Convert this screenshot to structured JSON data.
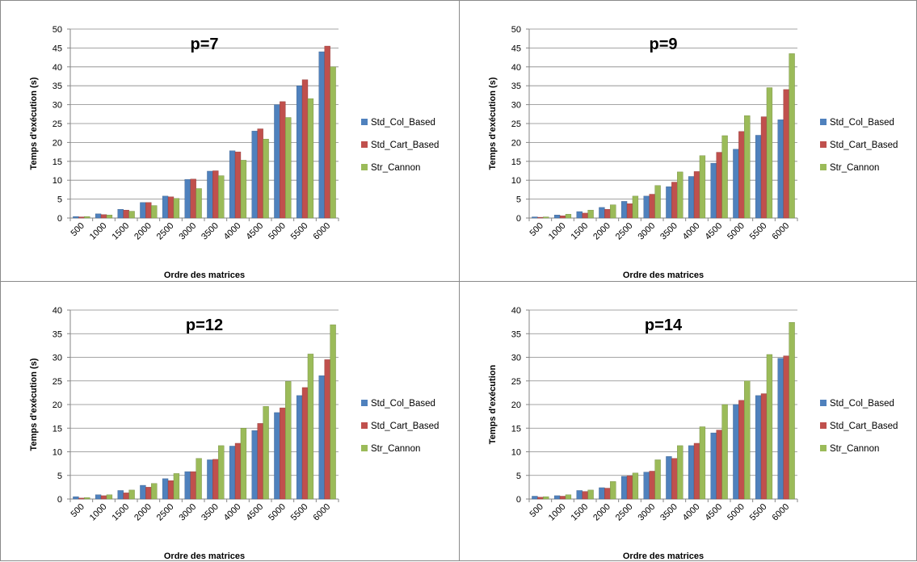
{
  "chart_data": [
    {
      "type": "bar",
      "title": "p=7",
      "xlabel": "Ordre des matrices",
      "ylabel": "Temps d'exécution (s)",
      "ylim": [
        0,
        50
      ],
      "ytick_step": 5,
      "grid": true,
      "legend_position": "right",
      "categories": [
        "500",
        "1000",
        "1500",
        "2000",
        "2500",
        "3000",
        "3500",
        "4000",
        "4500",
        "5000",
        "5500",
        "6000"
      ],
      "series": [
        {
          "name": "Std_Col_Based",
          "values": [
            0.4,
            1.1,
            2.3,
            4.1,
            5.8,
            10.2,
            12.4,
            17.8,
            23.0,
            30.0,
            35.0,
            44.0
          ]
        },
        {
          "name": "Std_Cart_Based",
          "values": [
            0.3,
            0.9,
            2.1,
            4.1,
            5.6,
            10.3,
            12.5,
            17.5,
            23.6,
            30.8,
            36.6,
            45.5
          ]
        },
        {
          "name": "Str_Cannon",
          "values": [
            0.4,
            0.8,
            1.8,
            3.3,
            5.2,
            7.8,
            11.2,
            15.3,
            20.9,
            26.6,
            31.6,
            40.0
          ]
        }
      ]
    },
    {
      "type": "bar",
      "title": "p=9",
      "xlabel": "Ordre des matrices",
      "ylabel": "Temps d'exécution (s)",
      "ylim": [
        0,
        50
      ],
      "ytick_step": 5,
      "grid": true,
      "legend_position": "right",
      "categories": [
        "500",
        "1000",
        "1500",
        "2000",
        "2500",
        "3000",
        "3500",
        "4000",
        "4500",
        "5000",
        "5500",
        "6000"
      ],
      "series": [
        {
          "name": "Std_Col_Based",
          "values": [
            0.3,
            0.8,
            1.7,
            2.8,
            4.4,
            5.8,
            8.3,
            11.0,
            14.5,
            18.2,
            21.9,
            26.0
          ]
        },
        {
          "name": "Std_Cart_Based",
          "values": [
            0.2,
            0.6,
            1.3,
            2.3,
            3.8,
            6.3,
            9.5,
            12.3,
            17.4,
            22.9,
            26.8,
            34.0
          ]
        },
        {
          "name": "Str_Cannon",
          "values": [
            0.3,
            1.0,
            2.1,
            3.5,
            5.8,
            8.6,
            12.2,
            16.5,
            21.8,
            27.1,
            34.5,
            43.5
          ]
        }
      ]
    },
    {
      "type": "bar",
      "title": "p=12",
      "xlabel": "Ordre des matrices",
      "ylabel": "Temps d'exécution (s)",
      "ylim": [
        0,
        40
      ],
      "ytick_step": 5,
      "grid": true,
      "legend_position": "right",
      "categories": [
        "500",
        "1000",
        "1500",
        "2000",
        "2500",
        "3000",
        "3500",
        "4000",
        "4500",
        "5000",
        "5500",
        "6000"
      ],
      "series": [
        {
          "name": "Std_Col_Based",
          "values": [
            0.5,
            0.9,
            1.8,
            2.9,
            4.3,
            5.8,
            8.3,
            11.2,
            14.5,
            18.3,
            21.9,
            26.1
          ]
        },
        {
          "name": "Std_Cart_Based",
          "values": [
            0.2,
            0.7,
            1.3,
            2.5,
            3.9,
            5.8,
            8.4,
            11.8,
            16.0,
            19.3,
            23.6,
            29.5
          ]
        },
        {
          "name": "Str_Cannon",
          "values": [
            0.3,
            0.9,
            1.9,
            3.3,
            5.4,
            8.6,
            11.3,
            15.0,
            19.6,
            24.9,
            30.7,
            36.9
          ]
        }
      ]
    },
    {
      "type": "bar",
      "title": "p=14",
      "xlabel": "Ordre des matrices",
      "ylabel": "Temps d'exécution",
      "ylim": [
        0,
        40
      ],
      "ytick_step": 5,
      "grid": true,
      "legend_position": "right",
      "categories": [
        "500",
        "1000",
        "1500",
        "2000",
        "2500",
        "3000",
        "3500",
        "4000",
        "4500",
        "5000",
        "5500",
        "6000"
      ],
      "series": [
        {
          "name": "Std_Col_Based",
          "values": [
            0.6,
            0.7,
            1.8,
            2.4,
            4.8,
            5.7,
            9.0,
            11.3,
            14.0,
            20.0,
            21.9,
            29.8
          ]
        },
        {
          "name": "Std_Cart_Based",
          "values": [
            0.4,
            0.6,
            1.6,
            2.3,
            4.9,
            5.9,
            8.6,
            11.8,
            14.6,
            20.9,
            22.3,
            30.3
          ]
        },
        {
          "name": "Str_Cannon",
          "values": [
            0.5,
            0.9,
            1.9,
            3.7,
            5.5,
            8.3,
            11.3,
            15.3,
            20.0,
            25.0,
            30.6,
            37.4
          ]
        }
      ]
    }
  ],
  "colors": {
    "series": [
      "#4f81bd",
      "#c0504d",
      "#9bbb59"
    ],
    "series_edge": [
      "#385d8a",
      "#8c3836",
      "#71893f"
    ],
    "gridline": "#868686",
    "axis": "#868686",
    "panel_border": "#8a8a8a"
  }
}
